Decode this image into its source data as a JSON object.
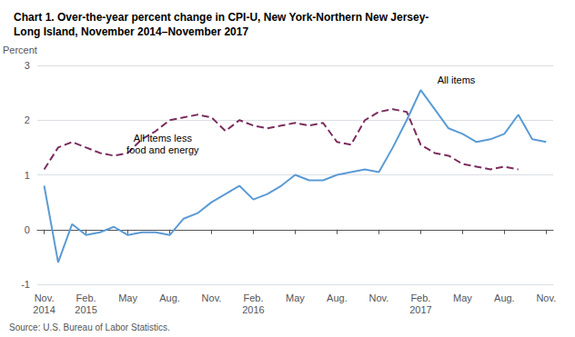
{
  "chart_data": {
    "type": "line",
    "title": "Chart 1. Over-the-year percent change in CPI-U, New York-Northern New Jersey-\nLong Island, November 2014–November 2017",
    "ylabel": "Percent",
    "source": "Source: U.S. Bureau of Labor Statistics.",
    "categories": [
      "Nov.\n2014",
      null,
      null,
      "Feb.\n2015",
      null,
      null,
      "May",
      null,
      null,
      "Aug.",
      null,
      null,
      "Nov.",
      null,
      null,
      "Feb.\n2016",
      null,
      null,
      "May",
      null,
      null,
      "Aug.",
      null,
      null,
      "Nov.",
      null,
      null,
      "Feb.\n2017",
      null,
      null,
      "May",
      null,
      null,
      "Aug.",
      null,
      null,
      "Nov."
    ],
    "series": [
      {
        "color": "#5b9bd5",
        "line_style": "solid",
        "values": [
          0.8,
          -0.6,
          0.1,
          -0.1,
          -0.05,
          0.05,
          -0.1,
          -0.05,
          -0.05,
          -0.1,
          0.2,
          0.3,
          0.5,
          0.65,
          0.8,
          0.55,
          0.65,
          0.8,
          1.0,
          0.9,
          0.9,
          1.0,
          1.05,
          1.1,
          1.05,
          1.5,
          2.0,
          2.55,
          2.2,
          1.85,
          1.75,
          1.6,
          1.65,
          1.75,
          2.1,
          1.65,
          1.6
        ]
      },
      {
        "color": "#7b2d5e",
        "line_style": "dashed",
        "values": [
          1.1,
          1.5,
          1.6,
          1.5,
          1.4,
          1.35,
          1.4,
          1.65,
          1.8,
          2.0,
          2.05,
          2.1,
          2.05,
          1.8,
          2.0,
          1.9,
          1.85,
          1.9,
          1.95,
          1.9,
          1.95,
          1.6,
          1.55,
          2.0,
          2.15,
          2.2,
          2.15,
          1.55,
          1.4,
          1.35,
          1.2,
          1.15,
          1.1,
          1.15,
          1.1,
          null,
          null
        ]
      }
    ],
    "annotations": [
      {
        "text": "All items less\nfood and energy",
        "x": 8.5,
        "y": 1.78
      },
      {
        "text": "All items",
        "x": 28.2,
        "y": 2.62
      }
    ],
    "ylim": [
      -1,
      3
    ],
    "yticks": [
      -1,
      0,
      1,
      2,
      3
    ],
    "grid": true
  }
}
